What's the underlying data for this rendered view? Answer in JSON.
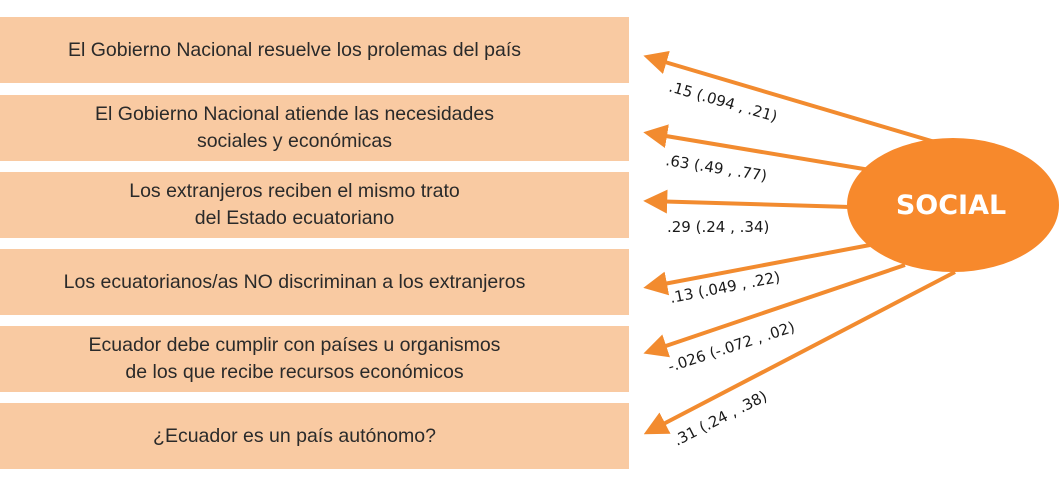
{
  "factor": {
    "label": "SOCIAL",
    "fill_color": "#f7892c",
    "arrow_color": "#f28b2f"
  },
  "box_color": "#f9caa2",
  "indicators": [
    {
      "text": "El Gobierno Nacional resuelve los prolemas del país",
      "coef": ".15 (.094 , .21)"
    },
    {
      "text": "El Gobierno Nacional atiende las necesidades\nsociales y económicas",
      "coef": ".63 (.49 , .77)"
    },
    {
      "text": "Los extranjeros reciben el mismo trato\ndel Estado ecuatoriano",
      "coef": ".29 (.24 , .34)"
    },
    {
      "text": "Los ecuatorianos/as NO discriminan a los extranjeros",
      "coef": ".13 (.049 , .22)"
    },
    {
      "text": "Ecuador debe cumplir con países u organismos\nde los que recibe recursos económicos",
      "coef": "-.026 (-.072 , .02)"
    },
    {
      "text": "¿Ecuador es un país autónomo?",
      "coef": ".31 (.24 , .38)"
    }
  ]
}
